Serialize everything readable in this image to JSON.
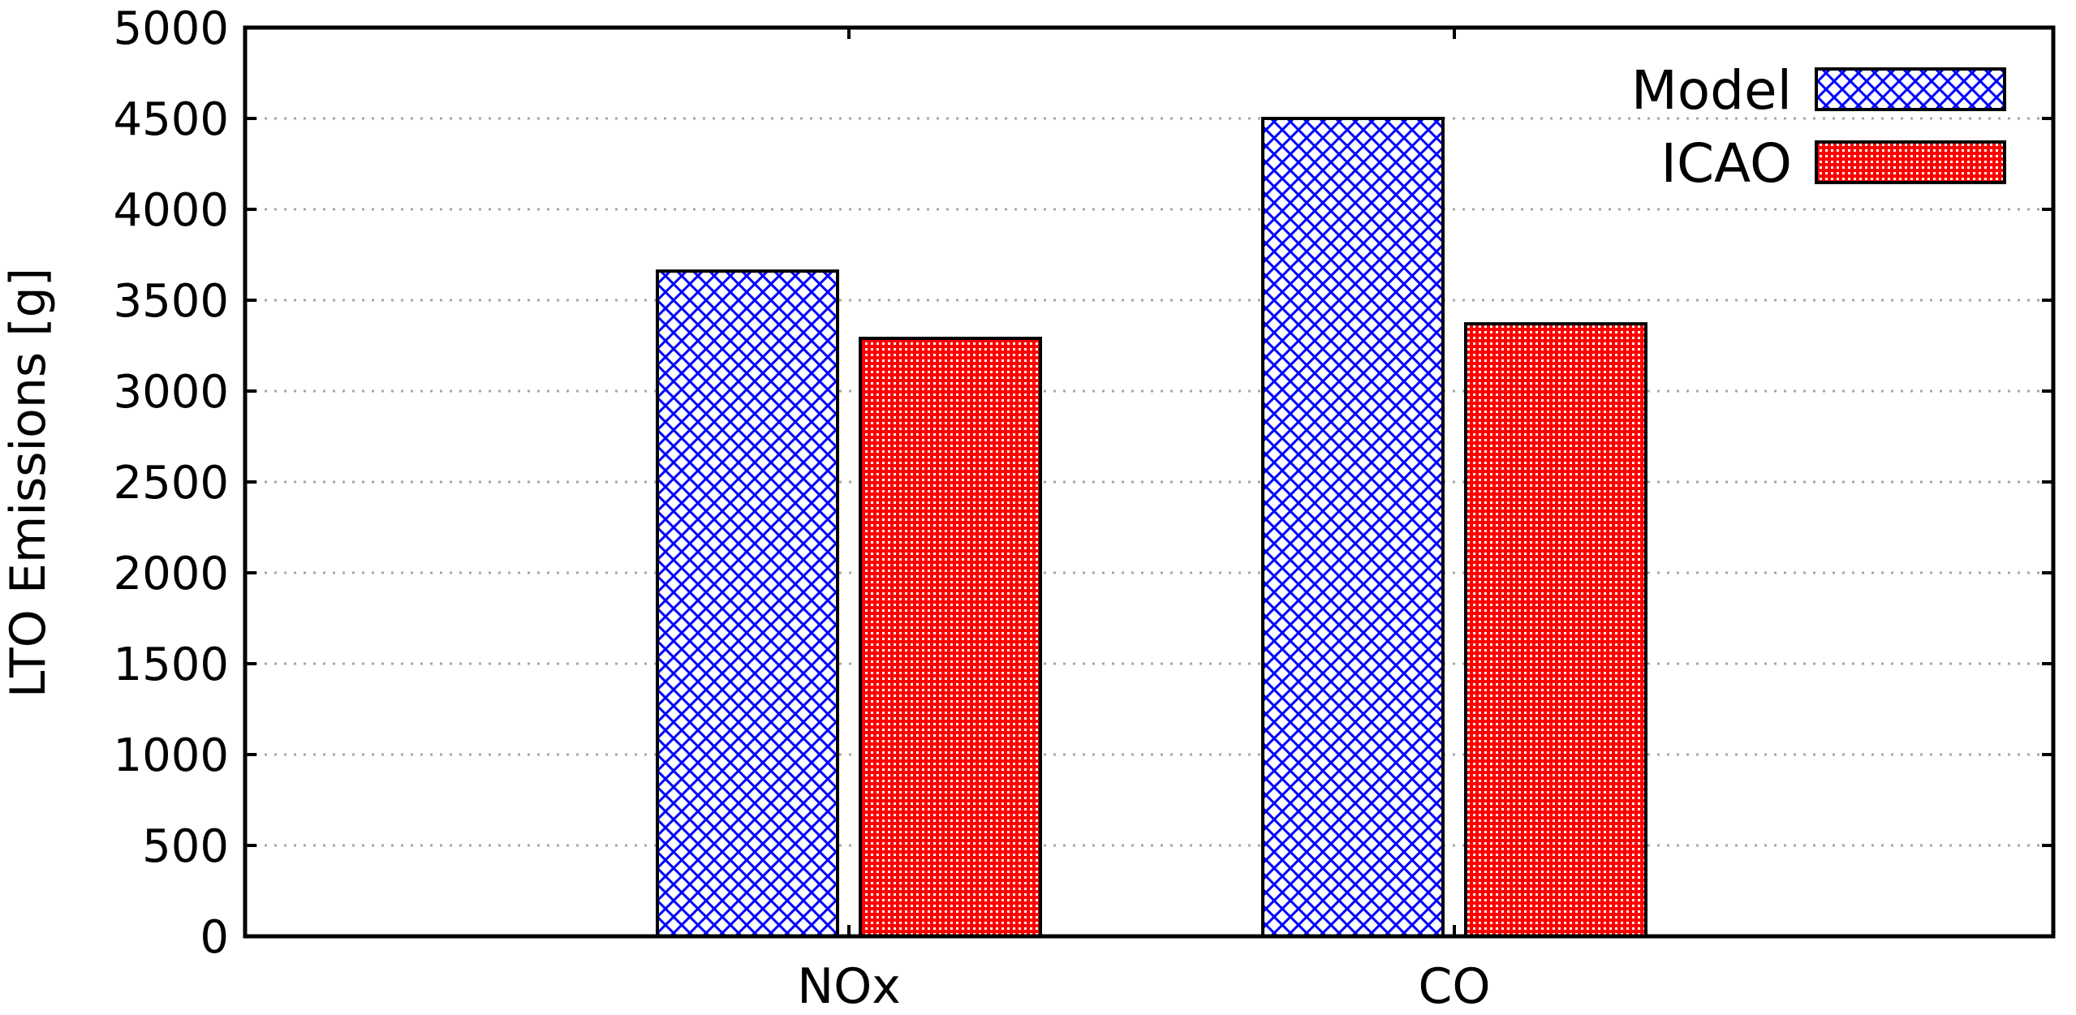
{
  "chart_data": {
    "type": "bar",
    "title": "",
    "xlabel": "",
    "ylabel": "LTO Emissions [g]",
    "categories": [
      "NOx",
      "CO"
    ],
    "series": [
      {
        "name": "Model",
        "values": [
          3660,
          4500
        ],
        "color": "#0000ff",
        "pattern": "crosshatch"
      },
      {
        "name": "ICAO",
        "values": [
          3290,
          3370
        ],
        "color": "#ff0000",
        "pattern": "dots"
      }
    ],
    "ylim": [
      0,
      5000
    ],
    "yticks": [
      0,
      500,
      1000,
      1500,
      2000,
      2500,
      3000,
      3500,
      4000,
      4500,
      5000
    ],
    "grid": true,
    "legend": {
      "position": "top-right",
      "entries": [
        "Model",
        "ICAO"
      ]
    }
  }
}
